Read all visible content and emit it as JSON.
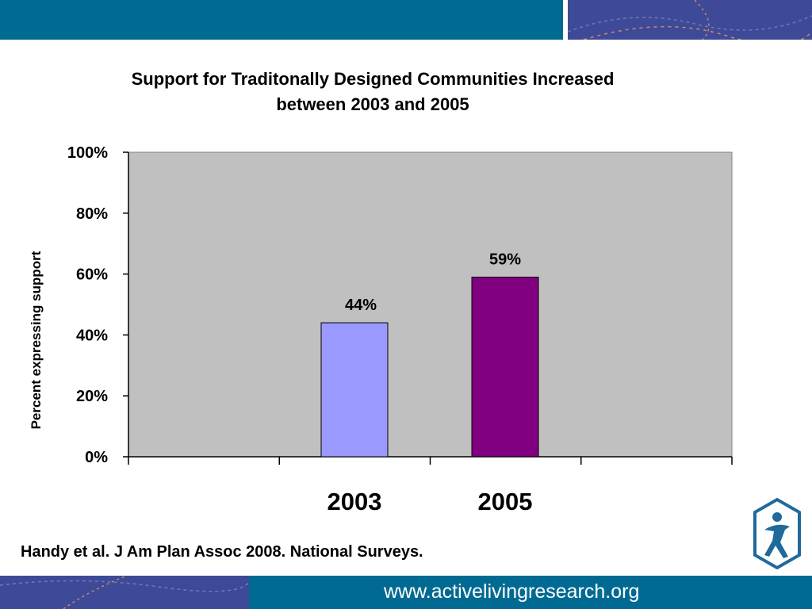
{
  "colors": {
    "header_band": "#006a93",
    "accent_band": "#3e4a98",
    "plot_background": "#c0c0c0",
    "bar_2003": "#9999ff",
    "bar_2005": "#800080"
  },
  "chart_data": {
    "type": "bar",
    "title_line1": "Support for Traditonally Designed Communities Increased",
    "title_line2": "between 2003 and 2005",
    "ylabel": "Percent expressing support",
    "ylim": [
      0,
      100
    ],
    "yticks": [
      "0%",
      "20%",
      "40%",
      "60%",
      "80%",
      "100%"
    ],
    "categories": [
      "",
      "2003",
      "2005",
      ""
    ],
    "values": [
      null,
      44,
      59,
      null
    ],
    "data_labels": [
      "",
      "44%",
      "59%",
      ""
    ],
    "grid": false,
    "legend": "none"
  },
  "footer": {
    "citation": "Handy et al. J Am Plan Assoc 2008.  National Surveys.",
    "url": "www.activelivingresearch.org"
  },
  "logo": {
    "icon": "active-living-research-logo-icon"
  }
}
